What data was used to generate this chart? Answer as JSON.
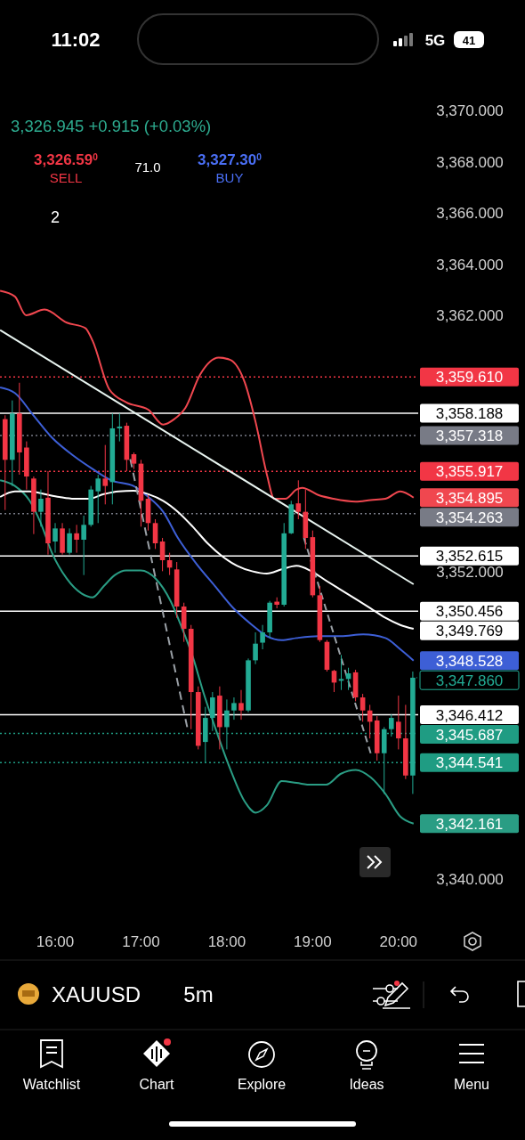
{
  "chart_data": {
    "type": "candlestick",
    "title": "XAUUSD",
    "x": [
      15.4167,
      15.5,
      15.5833,
      15.6667,
      15.75,
      15.8333,
      15.9167,
      16,
      16.0833,
      16.1667,
      16.25,
      16.3333,
      16.4167,
      16.5,
      16.5833,
      16.6667,
      16.75,
      16.8333,
      16.9167,
      17,
      17.0833,
      17.1667,
      17.25,
      17.3333,
      17.4167,
      17.5,
      17.5833,
      17.6667,
      17.75,
      17.8333,
      17.9167,
      18,
      18.0833,
      18.1667,
      18.25,
      18.3333,
      18.4167,
      18.5,
      18.5833,
      18.6667,
      18.75,
      18.8333,
      18.9167,
      19,
      19.0833,
      19.1667,
      19.25,
      19.3333,
      19.4167,
      19.5,
      19.5833,
      19.6667,
      19.75,
      19.8333,
      19.9167,
      20,
      20.0833,
      20.1667
    ],
    "ohlc": [
      [
        3357.96,
        3358.11,
        3354.41,
        3356.37
      ],
      [
        3356.37,
        3358.69,
        3355.35,
        3358.18
      ],
      [
        3358.18,
        3359.38,
        3355.79,
        3356.66
      ],
      [
        3356.85,
        3357.09,
        3355.21,
        3355.72
      ],
      [
        3355.64,
        3355.72,
        3353.47,
        3354.34
      ],
      [
        3354.34,
        3355.21,
        3353.76,
        3354.85
      ],
      [
        3354.89,
        3355.93,
        3352.67,
        3353.11
      ],
      [
        3353.18,
        3353.9,
        3352.74,
        3353.69
      ],
      [
        3353.69,
        3353.9,
        3352.67,
        3352.74
      ],
      [
        3352.74,
        3353.69,
        3352.67,
        3353.5
      ],
      [
        3353.5,
        3353.83,
        3352.74,
        3353.25
      ],
      [
        3353.25,
        3354.19,
        3351.87,
        3353.83
      ],
      [
        3353.83,
        3355.35,
        3353.76,
        3355.21
      ],
      [
        3355.14,
        3355.79,
        3353.9,
        3355.64
      ],
      [
        3355.64,
        3356.95,
        3354.63,
        3355.35
      ],
      [
        3355.5,
        3358.18,
        3354.63,
        3357.6
      ],
      [
        3357.6,
        3358.18,
        3357.09,
        3357.67
      ],
      [
        3357.7,
        3357.82,
        3355.93,
        3356.37
      ],
      [
        3356.59,
        3356.66,
        3356.01,
        3356.22
      ],
      [
        3356.22,
        3356.37,
        3353.76,
        3354.77
      ],
      [
        3354.85,
        3354.99,
        3353.61,
        3353.9
      ],
      [
        3353.9,
        3354.05,
        3352.89,
        3353.11
      ],
      [
        3353.18,
        3353.32,
        3352.02,
        3352.45
      ],
      [
        3352.45,
        3352.74,
        3351.87,
        3352.16
      ],
      [
        3352.09,
        3352.38,
        3350.2,
        3350.64
      ],
      [
        3350.64,
        3350.79,
        3349.26,
        3349.77
      ],
      [
        3349.77,
        3349.92,
        3345.85,
        3347.3
      ],
      [
        3347.3,
        3347.52,
        3345.06,
        3345.2
      ],
      [
        3345.35,
        3346.72,
        3344.55,
        3346.29
      ],
      [
        3346.29,
        3347.3,
        3345.78,
        3347.09
      ],
      [
        3347.16,
        3347.52,
        3345.06,
        3345.93
      ],
      [
        3345.93,
        3347.01,
        3345.06,
        3346.58
      ],
      [
        3346.58,
        3347.09,
        3346.22,
        3346.87
      ],
      [
        3346.87,
        3347.38,
        3346.22,
        3346.58
      ],
      [
        3346.58,
        3348.61,
        3346.51,
        3348.54
      ],
      [
        3348.54,
        3349.63,
        3348.39,
        3349.19
      ],
      [
        3349.23,
        3349.92,
        3348.97,
        3349.63
      ],
      [
        3349.63,
        3350.86,
        3349.41,
        3350.79
      ],
      [
        3350.83,
        3351,
        3350.57,
        3350.71
      ],
      [
        3350.71,
        3353.9,
        3350.64,
        3353.5
      ],
      [
        3353.5,
        3354.77,
        3353.47,
        3354.63
      ],
      [
        3354.67,
        3355.57,
        3354.05,
        3354.34
      ],
      [
        3354.34,
        3355.21,
        3352.89,
        3353.32
      ],
      [
        3353.35,
        3353.61,
        3351,
        3351.08
      ],
      [
        3351.08,
        3351.44,
        3349.26,
        3349.33
      ],
      [
        3349.26,
        3349.33,
        3348.1,
        3348.17
      ],
      [
        3348.13,
        3348.17,
        3347.3,
        3347.67
      ],
      [
        3347.74,
        3348.75,
        3347.38,
        3347.81
      ],
      [
        3347.81,
        3348.25,
        3347.38,
        3348.03
      ],
      [
        3348.07,
        3348.17,
        3346.94,
        3347.09
      ],
      [
        3347.09,
        3347.23,
        3346.14,
        3346.58
      ],
      [
        3346.58,
        3346.8,
        3345.49,
        3346.14
      ],
      [
        3346.19,
        3346.36,
        3344.62,
        3344.91
      ],
      [
        3344.91,
        3345.93,
        3343.32,
        3345.85
      ],
      [
        3345.85,
        3346.43,
        3345.56,
        3346.29
      ],
      [
        3346.14,
        3347.16,
        3345.06,
        3345.49
      ],
      [
        3345.49,
        3346.8,
        3343.9,
        3344.04
      ],
      [
        3344.04,
        3348.1,
        3343.32,
        3347.86
      ]
    ],
    "series": [
      {
        "type": "line",
        "color": "#f0474f",
        "x": [
          15.358,
          15.53,
          15.66,
          15.876,
          16.135,
          16.351,
          16.437,
          16.631,
          16.826,
          17.085,
          17.258,
          17.387,
          17.517,
          17.689,
          17.905,
          18.035,
          18.207,
          18.337,
          18.467,
          18.553,
          18.683,
          18.812,
          18.877,
          19.071,
          19.244,
          19.503,
          19.676,
          19.848,
          20.021,
          20.176
        ],
        "values": [
          3362.97,
          3362.75,
          3362.02,
          3362.24,
          3361.73,
          3361.52,
          3361.01,
          3359.12,
          3358.62,
          3358.33,
          3357.75,
          3357.96,
          3358.4,
          3359.7,
          3360.36,
          3360.28,
          3359.41,
          3357.82,
          3355.79,
          3354.85,
          3354.85,
          3355.21,
          3355.28,
          3354.99,
          3354.85,
          3354.74,
          3354.8,
          3354.85,
          3355.14,
          3354.895
        ],
        "value_labels": [
          null,
          null,
          null,
          null,
          null,
          null,
          null,
          null,
          null,
          null,
          null,
          null,
          null,
          null,
          null,
          null,
          null,
          null,
          null,
          null,
          null,
          null,
          null,
          null,
          null,
          null,
          null,
          null,
          null,
          "3,354.895"
        ]
      },
      {
        "type": "line",
        "color": "#3d5fd6",
        "x": [
          15.358,
          15.53,
          15.746,
          15.962,
          16.221,
          16.437,
          16.653,
          16.912,
          17.085,
          17.258,
          17.43,
          17.646,
          17.862,
          18.078,
          18.294,
          18.467,
          18.639,
          18.812,
          19.071,
          19.33,
          19.589,
          19.848,
          20.021,
          20.176
        ],
        "values": [
          3359.2,
          3358.98,
          3358.11,
          3357.24,
          3356.51,
          3356.01,
          3355.57,
          3355.35,
          3354.92,
          3354.34,
          3353.32,
          3352.31,
          3351.44,
          3350.57,
          3349.92,
          3349.48,
          3349.33,
          3349.41,
          3349.48,
          3349.48,
          3349.55,
          3349.41,
          3348.97,
          3348.528
        ],
        "value_labels": [
          null,
          null,
          null,
          null,
          null,
          null,
          null,
          null,
          null,
          null,
          null,
          null,
          null,
          null,
          null,
          null,
          null,
          null,
          null,
          null,
          null,
          null,
          null,
          "3,348.528"
        ]
      },
      {
        "type": "line",
        "color": "#2a9d84",
        "x": [
          15.358,
          15.53,
          15.703,
          15.832,
          15.962,
          16.135,
          16.307,
          16.437,
          16.567,
          16.696,
          16.826,
          16.998,
          17.171,
          17.344,
          17.473,
          17.603,
          17.732,
          17.862,
          18.035,
          18.207,
          18.337,
          18.467,
          18.639,
          18.812,
          18.985,
          19.157,
          19.33,
          19.503,
          19.676,
          19.848,
          20.021,
          20.176
        ],
        "values": [
          3355.57,
          3355.35,
          3354.77,
          3353.9,
          3352.74,
          3351.73,
          3351.15,
          3351,
          3351.44,
          3351.87,
          3352.05,
          3352.05,
          3351.73,
          3350.86,
          3349.84,
          3348.68,
          3347.23,
          3345.93,
          3344.33,
          3343.03,
          3342.59,
          3342.88,
          3343.82,
          3343.75,
          3343.68,
          3343.68,
          3344.11,
          3344.26,
          3343.97,
          3343.32,
          3342.44,
          3342.161
        ],
        "value_labels": [
          null,
          null,
          null,
          null,
          null,
          null,
          null,
          null,
          null,
          null,
          null,
          null,
          null,
          null,
          null,
          null,
          null,
          null,
          null,
          null,
          null,
          null,
          null,
          null,
          null,
          null,
          null,
          null,
          null,
          null,
          null,
          "3,342.161"
        ]
      },
      {
        "type": "line",
        "color": "#ffffff",
        "x": [
          15.358,
          15.53,
          15.703,
          15.876,
          16.048,
          16.221,
          16.394,
          16.567,
          16.739,
          16.912,
          17.085,
          17.258,
          17.43,
          17.603,
          17.776,
          17.948,
          18.121,
          18.294,
          18.467,
          18.639,
          18.812,
          18.985,
          19.157,
          19.33,
          19.503,
          19.676,
          19.848,
          20.021,
          20.176
        ],
        "values": [
          3354.92,
          3355.14,
          3355.14,
          3355.03,
          3354.92,
          3354.85,
          3354.85,
          3355.03,
          3355.14,
          3355.16,
          3355.03,
          3354.77,
          3354.34,
          3353.76,
          3353.11,
          3352.6,
          3352.23,
          3352.02,
          3351.93,
          3352.09,
          3352.23,
          3352.02,
          3351.65,
          3351.29,
          3350.93,
          3350.57,
          3350.2,
          3349.92,
          3349.769
        ],
        "value_labels": [
          null,
          null,
          null,
          null,
          null,
          null,
          null,
          null,
          null,
          null,
          null,
          null,
          null,
          null,
          null,
          null,
          null,
          null,
          null,
          null,
          null,
          null,
          null,
          null,
          null,
          null,
          null,
          null,
          "3,349.769"
        ]
      },
      {
        "type": "line",
        "color": "#e8f4f0",
        "x": [
          15.358,
          20.176
        ],
        "values": [
          3361.44,
          3351.51
        ]
      },
      {
        "type": "line",
        "color": "#9aa0a6",
        "line_style": "dashed",
        "x": [
          16.875,
          17.538
        ],
        "values": [
          3356.4,
          3345.93
        ]
      },
      {
        "type": "line",
        "color": "#9aa0a6",
        "line_style": "dashed",
        "x": [
          18.898,
          19.676
        ],
        "values": [
          3353.32,
          3344.91
        ]
      }
    ],
    "ref_lines": [
      {
        "axis": "y",
        "value": 3358.188,
        "label": "3,358.188",
        "color": "#ffffff"
      },
      {
        "axis": "y",
        "value": 3352.615,
        "label": "3,352.615",
        "color": "#ffffff"
      },
      {
        "axis": "y",
        "value": 3350.456,
        "label": "3,350.456",
        "color": "#ffffff"
      },
      {
        "axis": "y",
        "value": 3346.412,
        "label": "3,346.412",
        "color": "#ffffff"
      },
      {
        "axis": "y",
        "value": 3359.61,
        "label": "3,359.610",
        "color": "#f23645",
        "line_style": "dotted"
      },
      {
        "axis": "y",
        "value": 3357.318,
        "label": "3,357.318",
        "color": "#787b86",
        "line_style": "dotted"
      },
      {
        "axis": "y",
        "value": 3355.917,
        "label": "3,355.917",
        "color": "#f23645",
        "line_style": "dotted"
      },
      {
        "axis": "y",
        "value": 3354.263,
        "label": "3,354.263",
        "color": "#787b86",
        "line_style": "dotted"
      },
      {
        "axis": "y",
        "value": 3345.687,
        "label": "3,345.687",
        "color": "#1f9c83",
        "line_style": "dotted"
      },
      {
        "axis": "y",
        "value": 3344.541,
        "label": "3,344.541",
        "color": "#1f9c83",
        "line_style": "dotted"
      }
    ],
    "xlim": [
      15.357,
      20.23
    ],
    "xticks": [
      {
        "value": 16,
        "label": "16:00"
      },
      {
        "value": 17,
        "label": "17:00"
      },
      {
        "value": 18,
        "label": "18:00"
      },
      {
        "value": 19,
        "label": "19:00"
      },
      {
        "value": 20,
        "label": "20:00"
      }
    ],
    "ylim": [
      3338.5,
      3371.2
    ],
    "yticks": [
      {
        "value": 3340,
        "label": "3,340.000"
      },
      {
        "value": 3352,
        "label": "3,352.000"
      },
      {
        "value": 3362,
        "label": "3,362.000"
      },
      {
        "value": 3364,
        "label": "3,364.000"
      },
      {
        "value": 3366,
        "label": "3,366.000"
      },
      {
        "value": 3368,
        "label": "3,368.000"
      },
      {
        "value": 3370,
        "label": "3,370.000"
      }
    ],
    "grid": false,
    "annotations": [
      "11:02",
      "5G",
      "41",
      "3,326.945 +0.915 (+0.03%)",
      "3,326.59$^{0}$",
      "SELL",
      "71.0",
      "3,327.30$^{0}$",
      "BUY",
      "2",
      "5m",
      "Watchlist",
      "Chart",
      "Explore",
      "Ideas",
      "Menu",
      {
        "text": "3,347.860",
        "x": 20.1667,
        "y": 3347.86
      }
    ]
  }
}
